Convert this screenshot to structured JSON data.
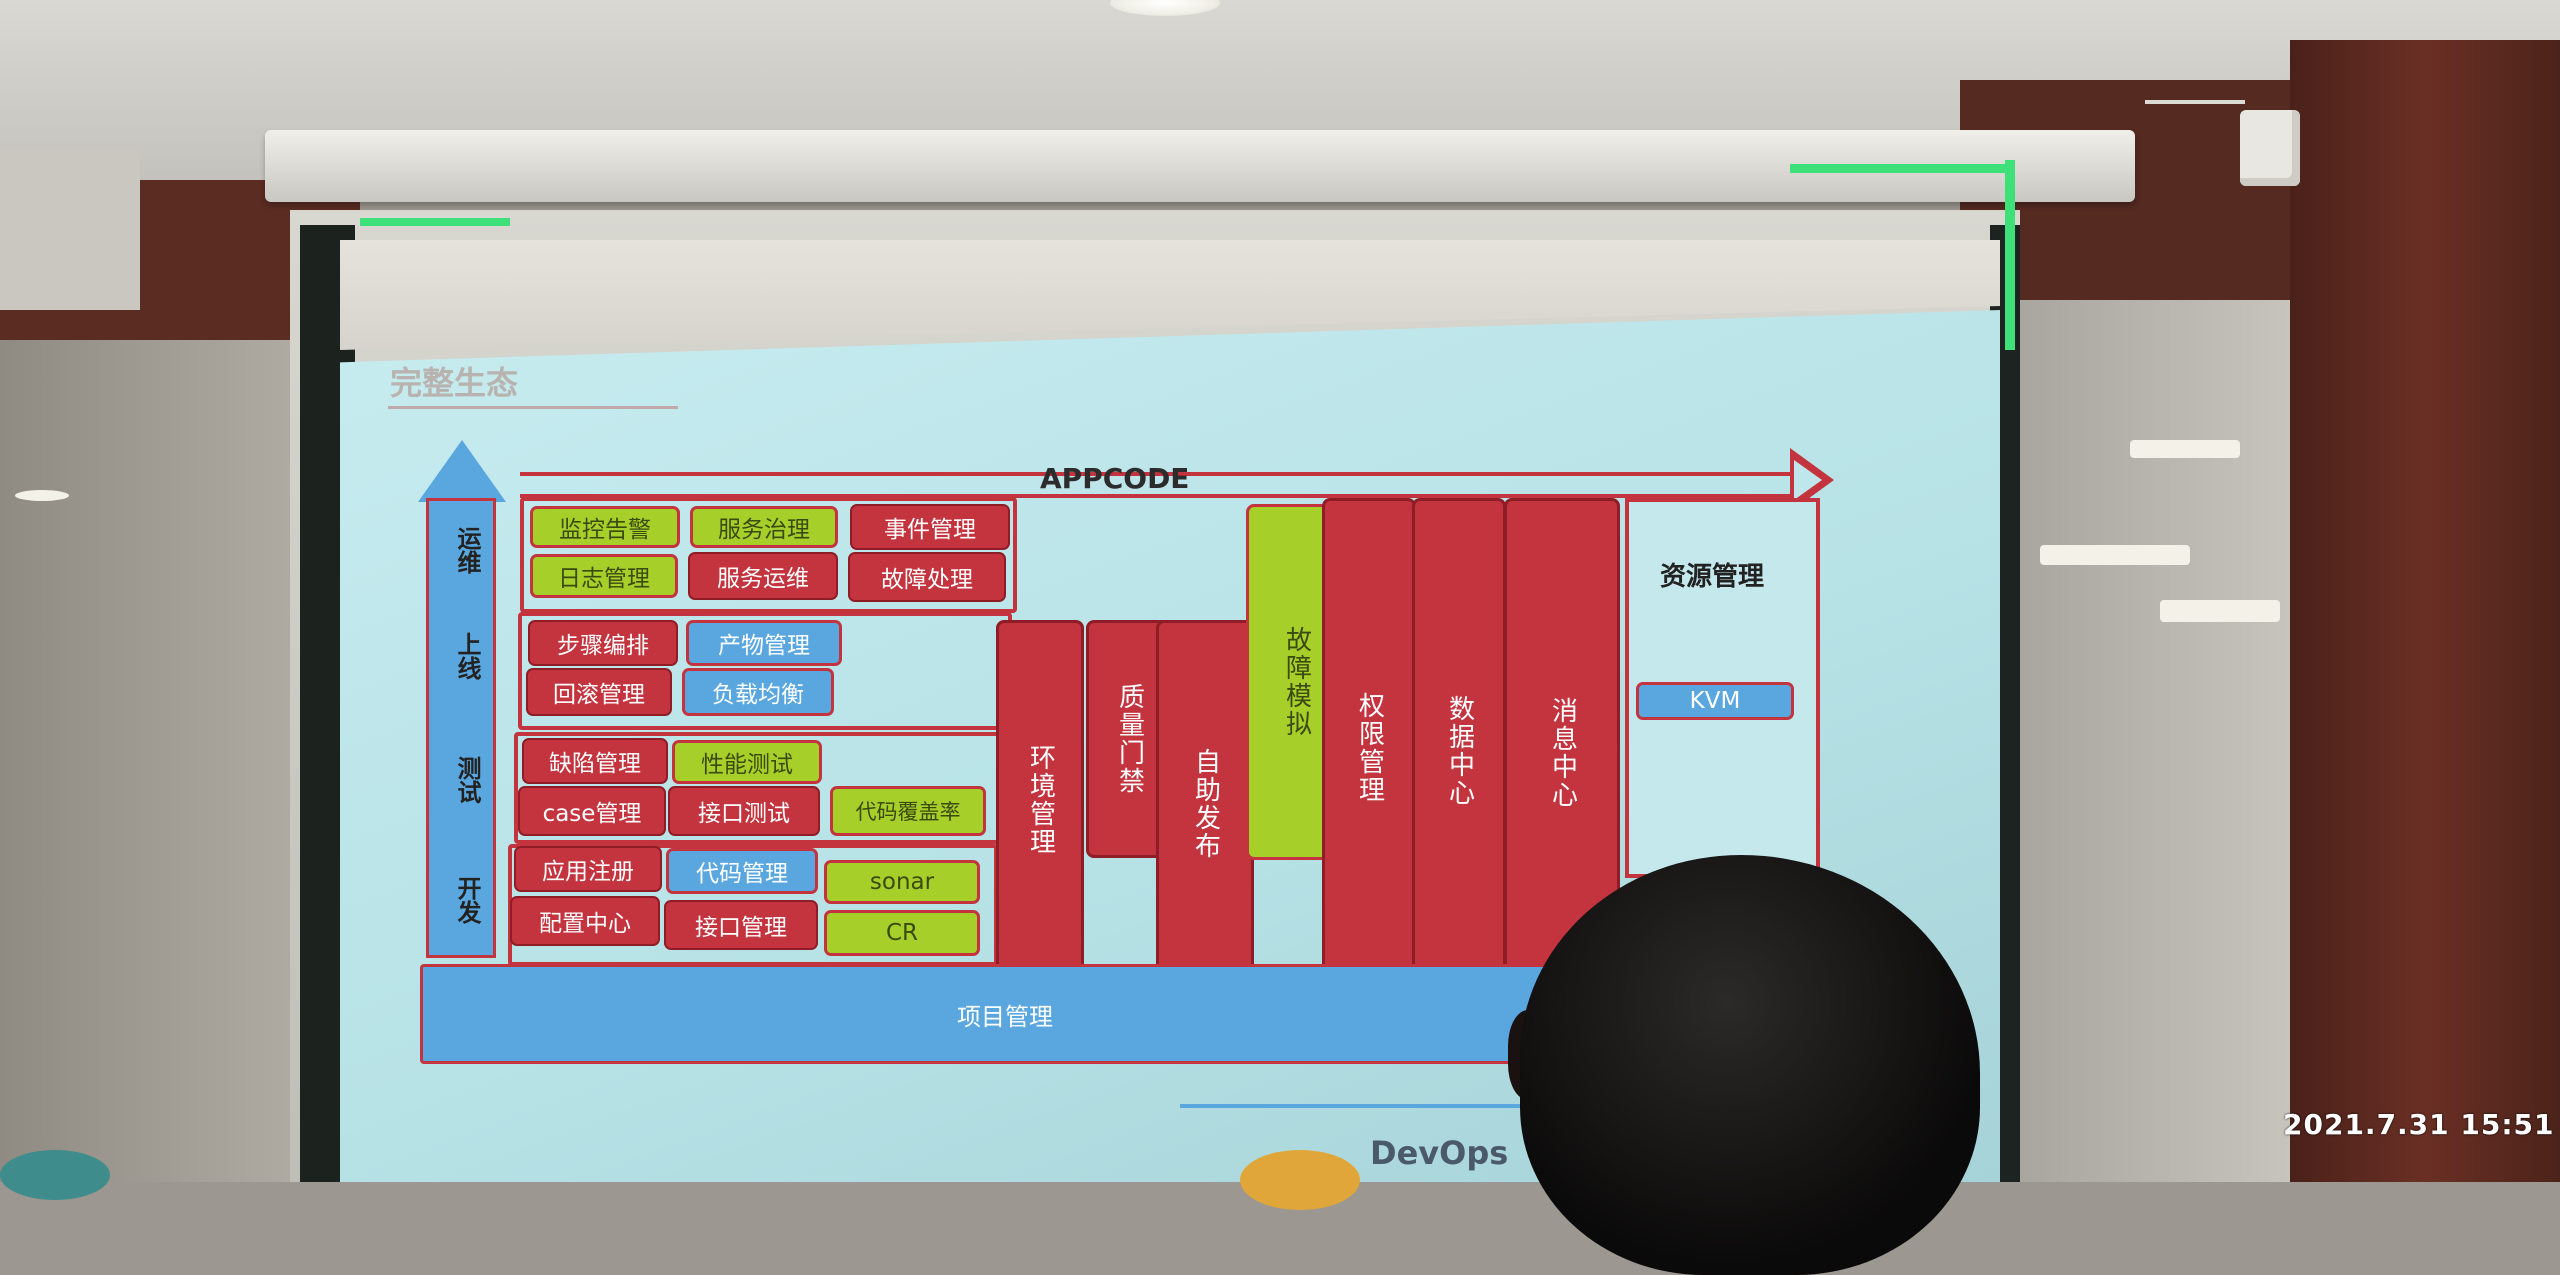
{
  "slide": {
    "title": "完整生态",
    "appcode": "APPCODE",
    "stages": [
      "运维",
      "上线",
      "测试",
      "开发"
    ],
    "ops_row1": [
      "监控告警",
      "服务治理",
      "事件管理"
    ],
    "ops_row2": [
      "日志管理",
      "服务运维",
      "故障处理"
    ],
    "launch_row1": [
      "步骤编排",
      "产物管理"
    ],
    "launch_row2": [
      "回滚管理",
      "负载均衡"
    ],
    "test_row1": [
      "缺陷管理",
      "性能测试"
    ],
    "test_row2": [
      "case管理",
      "接口测试"
    ],
    "test_coverage": "代码覆盖率",
    "dev_row1": [
      "应用注册",
      "代码管理",
      "sonar"
    ],
    "dev_row2": [
      "配置中心",
      "接口管理",
      "CR"
    ],
    "columns": [
      "环境管理",
      "质量门禁",
      "自助发布",
      "故障模拟",
      "权限管理",
      "数据中心",
      "消息中心"
    ],
    "resource_title": "资源管理",
    "resource_item": "KVM",
    "project_bar": "项目管理",
    "footer": "DevOps"
  },
  "photo": {
    "timestamp": "2021.7.31 15:51"
  },
  "colors": {
    "red": "#c3343f",
    "green": "#a7cf2a",
    "blue": "#5aa7df"
  }
}
